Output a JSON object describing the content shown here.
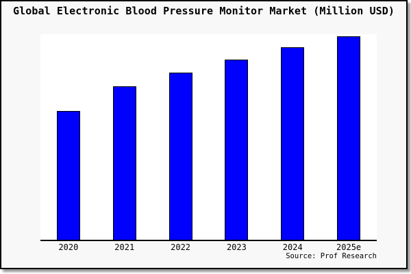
{
  "title": "Global Electronic Blood Pressure Monitor Market (Million USD)",
  "source": "Source: Prof Research",
  "colors": {
    "bar_fill": "#0000FF",
    "bar_edge": "#000000",
    "plot_background": "#FFFFFF",
    "canvas_background": "#F8F8F8",
    "frame_border": "#000000"
  },
  "chart_data": {
    "type": "bar",
    "title": "Global Electronic Blood Pressure Monitor Market (Million USD)",
    "categories": [
      "2020",
      "2021",
      "2022",
      "2023",
      "2024",
      "2025e"
    ],
    "values": [
      63.4,
      75.5,
      82.2,
      88.6,
      94.6,
      100
    ],
    "xlabel": "",
    "ylabel": "",
    "ylim": [
      0,
      101
    ],
    "grid": false,
    "legend": false,
    "y_axis_labels_visible": false,
    "note": "No y-axis tick labels are shown in the image; values are relative bar heights normalized so 2025e = 100."
  }
}
